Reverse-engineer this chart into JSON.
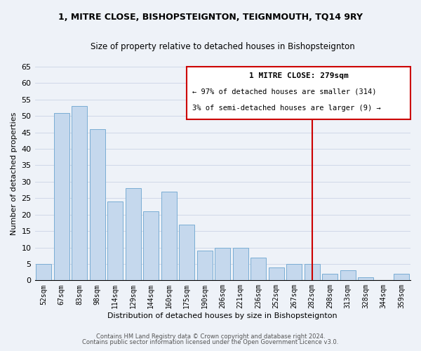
{
  "title": "1, MITRE CLOSE, BISHOPSTEIGNTON, TEIGNMOUTH, TQ14 9RY",
  "subtitle": "Size of property relative to detached houses in Bishopsteignton",
  "xlabel": "Distribution of detached houses by size in Bishopsteignton",
  "ylabel": "Number of detached properties",
  "bar_labels": [
    "52sqm",
    "67sqm",
    "83sqm",
    "98sqm",
    "114sqm",
    "129sqm",
    "144sqm",
    "160sqm",
    "175sqm",
    "190sqm",
    "206sqm",
    "221sqm",
    "236sqm",
    "252sqm",
    "267sqm",
    "282sqm",
    "298sqm",
    "313sqm",
    "328sqm",
    "344sqm",
    "359sqm"
  ],
  "bar_heights": [
    5,
    51,
    53,
    46,
    24,
    28,
    21,
    27,
    17,
    9,
    10,
    10,
    7,
    4,
    5,
    5,
    2,
    3,
    1,
    0,
    2
  ],
  "bar_color": "#c5d8ed",
  "bar_edge_color": "#7aadd4",
  "vline_color": "#cc0000",
  "vline_index": 15,
  "annotation_title": "1 MITRE CLOSE: 279sqm",
  "annotation_line1": "← 97% of detached houses are smaller (314)",
  "annotation_line2": "3% of semi-detached houses are larger (9) →",
  "annotation_box_edge": "#cc0000",
  "ylim": [
    0,
    65
  ],
  "yticks": [
    0,
    5,
    10,
    15,
    20,
    25,
    30,
    35,
    40,
    45,
    50,
    55,
    60,
    65
  ],
  "footnote1": "Contains HM Land Registry data © Crown copyright and database right 2024.",
  "footnote2": "Contains public sector information licensed under the Open Government Licence v3.0.",
  "grid_color": "#d0d8e8",
  "background_color": "#eef2f8"
}
